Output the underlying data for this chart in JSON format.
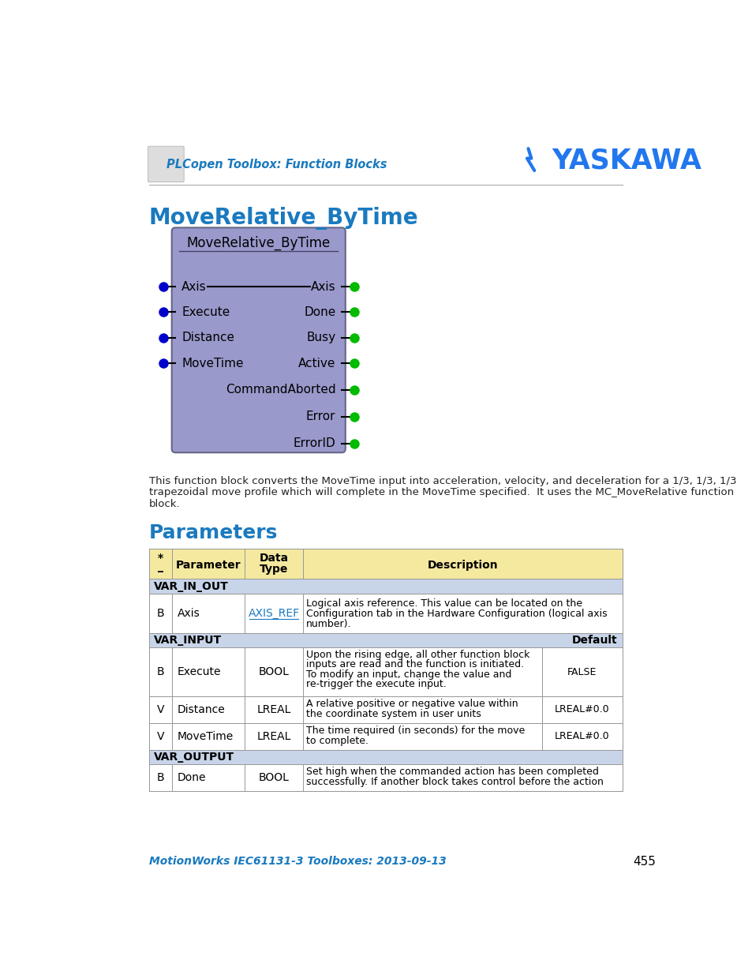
{
  "title": "MoveRelative_ByTime",
  "block_title": "MoveRelative_ByTime",
  "block_bg": "#9999cc",
  "block_border": "#555577",
  "inputs": [
    "Axis",
    "Execute",
    "Distance",
    "MoveTime"
  ],
  "outputs": [
    "Axis",
    "Done",
    "Busy",
    "Active",
    "CommandAborted",
    "Error",
    "ErrorID"
  ],
  "input_dot_color": "#0000cc",
  "output_dot_color": "#00bb00",
  "header_color": "#1a7abf",
  "section_bg": "#c8d4e8",
  "table_header_bg": "#f5e9a0",
  "table_border": "#999999",
  "page_bg": "#ffffff",
  "body_text_color": "#222222",
  "link_color": "#1a7abf",
  "footer_color": "#1a7abf",
  "description_text": "This function block converts the MoveTime input into acceleration, velocity, and deceleration for a 1/3, 1/3, 1/3\ntrapezoidal move profile which will complete in the MoveTime specified.  It uses the MC_MoveRelative function\nblock.",
  "parameters_title": "Parameters",
  "footer_text": "MotionWorks IEC61131-3 Toolboxes: 2013-09-13",
  "page_number": "455",
  "header_logo_text": "PLCopen Toolbox: Function Blocks",
  "yaskawa_text": "YASKAWA"
}
